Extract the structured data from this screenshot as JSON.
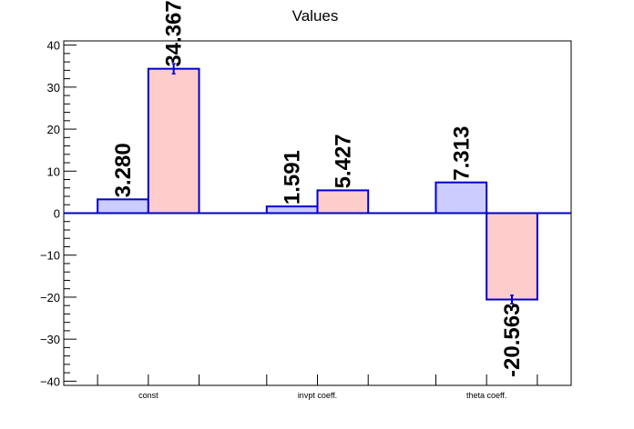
{
  "chart_data": {
    "type": "bar",
    "title": "Values",
    "categories": [
      "const",
      "invpt coeff.",
      "theta coeff."
    ],
    "series": [
      {
        "values": [
          3.28,
          1.591,
          7.313
        ],
        "labels": [
          "3.280",
          "1.591",
          "7.313"
        ],
        "color": "#ccccff"
      },
      {
        "values": [
          34.367,
          5.427,
          -20.563
        ],
        "labels": [
          "34.367",
          "5.427",
          "-20.563"
        ],
        "color": "#ffcccc",
        "errors": [
          1.2,
          null,
          1.0
        ]
      }
    ],
    "ylim": [
      -41,
      41
    ],
    "yticks": [
      40,
      30,
      20,
      10,
      0,
      -10,
      -20,
      -30,
      -40
    ],
    "ytick_labels": [
      "40",
      "30",
      "20",
      "10",
      "0",
      "−10",
      "−20",
      "−30",
      "−40"
    ],
    "xlabel": "",
    "ylabel": "",
    "grid": false,
    "bar_edge_color": "#0000cc",
    "zero_line_color": "#0000cc"
  }
}
